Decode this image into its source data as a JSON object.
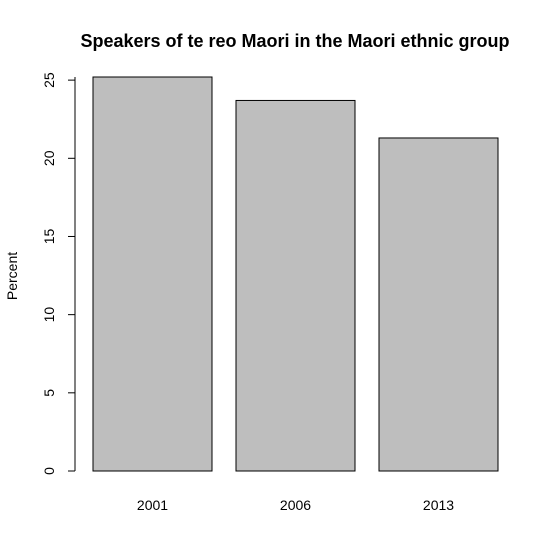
{
  "chart_data": {
    "type": "bar",
    "title": "Speakers of te reo Maori in the Maori ethnic group",
    "xlabel": "",
    "ylabel": "Percent",
    "categories": [
      "2001",
      "2006",
      "2013"
    ],
    "values": [
      25.2,
      23.7,
      21.3
    ],
    "yticks": [
      "0",
      "5",
      "10",
      "15",
      "20",
      "25"
    ],
    "ylim": [
      0,
      25.2
    ],
    "grid": false,
    "legend": "none",
    "colors": {
      "bar_fill": "#bebebe",
      "bar_stroke": "#000000"
    }
  }
}
